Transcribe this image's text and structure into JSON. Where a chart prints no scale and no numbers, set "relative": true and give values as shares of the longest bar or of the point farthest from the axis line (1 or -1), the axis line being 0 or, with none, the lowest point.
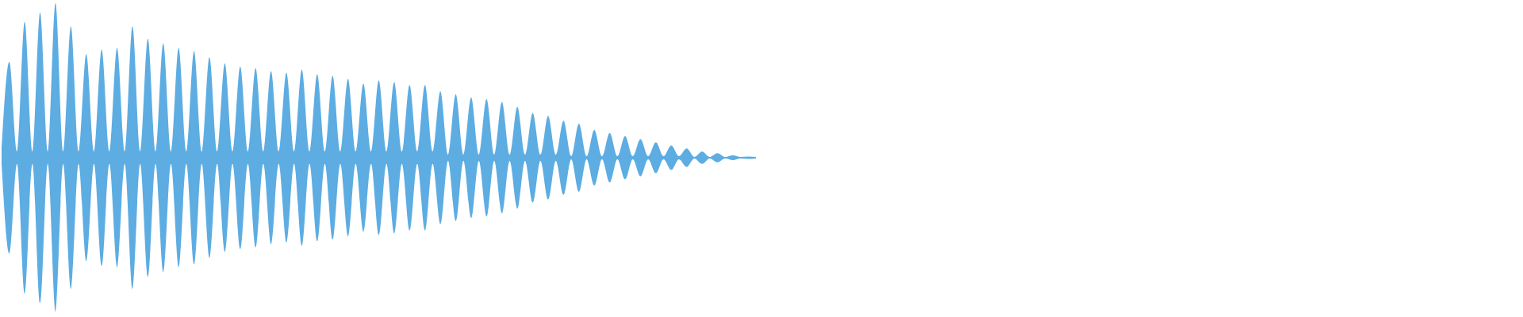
{
  "chart_data": {
    "type": "area",
    "relative": true,
    "color": "#5dade2",
    "categories": [
      null,
      null,
      null,
      null,
      null,
      null,
      null,
      null,
      null,
      null,
      null,
      null,
      null,
      null,
      null,
      null,
      null,
      null,
      null,
      null,
      null,
      null,
      null,
      null,
      null,
      null,
      null,
      null,
      null,
      null,
      null,
      null,
      null,
      null,
      null,
      null,
      null,
      null,
      null,
      null,
      null,
      null,
      null,
      null,
      null,
      null,
      null,
      null,
      null,
      null,
      null,
      null,
      null,
      null,
      null,
      null,
      null,
      null,
      null,
      null,
      null,
      null,
      null,
      null,
      null,
      null,
      null,
      null,
      null,
      null,
      null,
      null,
      null,
      null,
      null,
      null,
      null,
      null,
      null,
      null,
      null,
      null,
      null,
      null,
      null,
      null,
      null,
      null,
      null,
      null,
      null,
      null,
      null,
      null,
      null,
      null,
      null,
      null,
      null
    ],
    "values": [
      0.04,
      0.62,
      0.04,
      0.88,
      0.04,
      0.94,
      0.04,
      1.0,
      0.04,
      0.85,
      0.04,
      0.67,
      0.04,
      0.7,
      0.04,
      0.71,
      0.04,
      0.85,
      0.04,
      0.77,
      0.04,
      0.74,
      0.04,
      0.71,
      0.04,
      0.69,
      0.04,
      0.65,
      0.04,
      0.61,
      0.04,
      0.59,
      0.04,
      0.58,
      0.04,
      0.56,
      0.04,
      0.55,
      0.04,
      0.57,
      0.04,
      0.54,
      0.04,
      0.53,
      0.04,
      0.51,
      0.04,
      0.48,
      0.04,
      0.5,
      0.04,
      0.49,
      0.04,
      0.47,
      0.04,
      0.47,
      0.04,
      0.43,
      0.02,
      0.41,
      0.02,
      0.39,
      0.02,
      0.38,
      0.02,
      0.36,
      0.02,
      0.33,
      0.02,
      0.29,
      0.02,
      0.27,
      0.02,
      0.24,
      0.01,
      0.22,
      0.01,
      0.18,
      0.01,
      0.16,
      0.01,
      0.14,
      0.01,
      0.12,
      0.01,
      0.1,
      0.01,
      0.08,
      0.01,
      0.06,
      0.005,
      0.04,
      0.005,
      0.03,
      0.005,
      0.015,
      0.005,
      0.008,
      0.005
    ]
  }
}
